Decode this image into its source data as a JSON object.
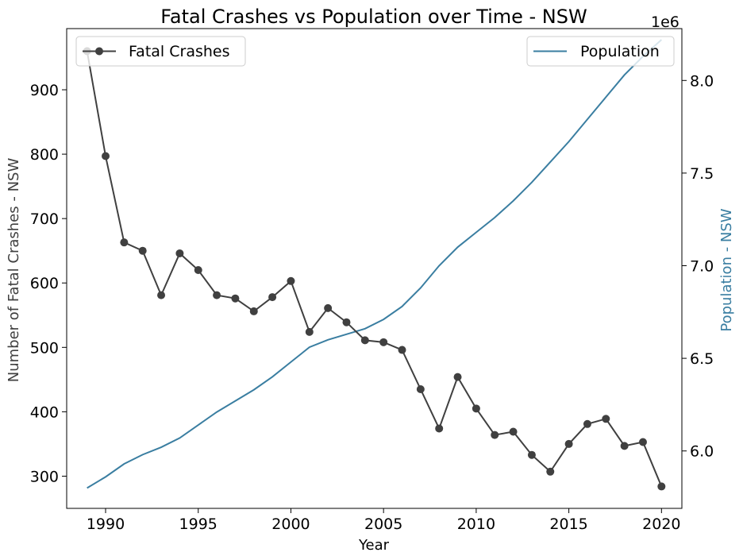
{
  "chart_data": {
    "type": "line",
    "title": "Fatal Crashes vs Population over Time - NSW",
    "xlabel": "Year",
    "xlim": [
      1987.9,
      2021.1
    ],
    "x_ticks": [
      1990,
      1995,
      2000,
      2005,
      2010,
      2015,
      2020
    ],
    "x_tick_labels": [
      "1990",
      "1995",
      "2000",
      "2005",
      "2010",
      "2015",
      "2020"
    ],
    "left_axis": {
      "label": "Number of Fatal Crashes - NSW",
      "ylim": [
        250,
        995
      ],
      "ticks": [
        300,
        400,
        500,
        600,
        700,
        800,
        900
      ],
      "tick_labels": [
        "300",
        "400",
        "500",
        "600",
        "700",
        "800",
        "900"
      ],
      "color": "#404040"
    },
    "right_axis": {
      "label": "Population - NSW",
      "ylim": [
        5.69,
        8.28
      ],
      "ticks": [
        6.0,
        6.5,
        7.0,
        7.5,
        8.0
      ],
      "tick_labels": [
        "6.0",
        "6.5",
        "7.0",
        "7.5",
        "8.0"
      ],
      "offset_text": "1e6",
      "color": "#3a7ea1"
    },
    "grid": false,
    "x": [
      1989,
      1990,
      1991,
      1992,
      1993,
      1994,
      1995,
      1996,
      1997,
      1998,
      1999,
      2000,
      2001,
      2002,
      2003,
      2004,
      2005,
      2006,
      2007,
      2008,
      2009,
      2010,
      2011,
      2012,
      2013,
      2014,
      2015,
      2016,
      2017,
      2018,
      2019,
      2020
    ],
    "series": [
      {
        "name": "Fatal Crashes",
        "axis": "left",
        "color": "#404040",
        "marker": "circle",
        "legend_position": "top-left",
        "values": [
          960,
          797,
          663,
          650,
          581,
          646,
          620,
          581,
          576,
          556,
          578,
          603,
          524,
          561,
          539,
          511,
          508,
          496,
          435,
          374,
          454,
          405,
          364,
          369,
          333,
          307,
          350,
          381,
          389,
          347,
          353,
          284
        ]
      },
      {
        "name": "Population",
        "axis": "right",
        "color": "#3a7ea1",
        "marker": "none",
        "legend_position": "top-right",
        "values": [
          5.8,
          5.86,
          5.93,
          5.98,
          6.02,
          6.07,
          6.14,
          6.21,
          6.27,
          6.33,
          6.4,
          6.48,
          6.56,
          6.6,
          6.63,
          6.66,
          6.71,
          6.78,
          6.88,
          7.0,
          7.1,
          7.18,
          7.26,
          7.35,
          7.45,
          7.56,
          7.67,
          7.79,
          7.91,
          8.03,
          8.13,
          8.22
        ]
      }
    ]
  }
}
